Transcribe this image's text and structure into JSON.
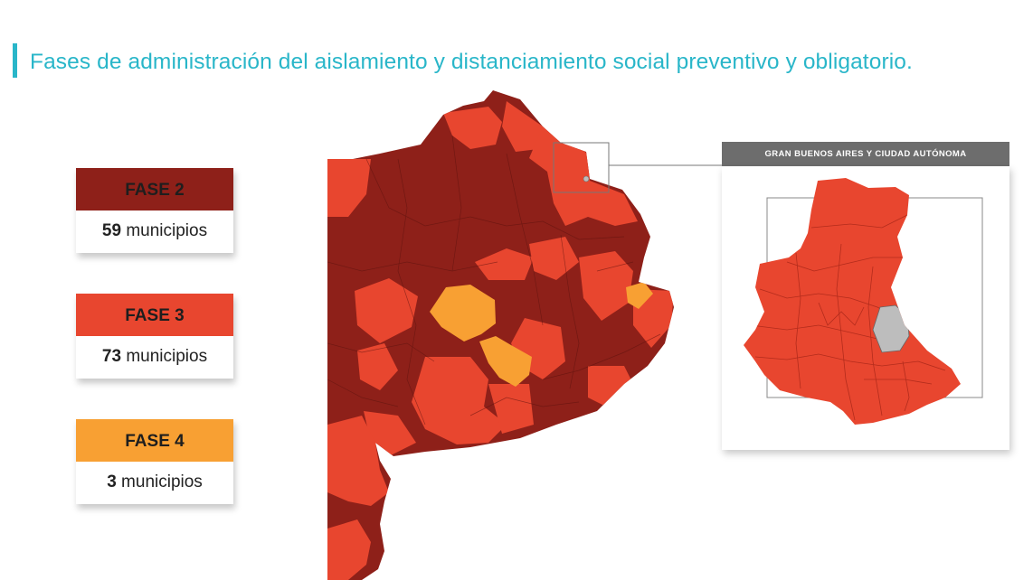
{
  "title": "Fases de administración del aislamiento y distanciamiento social preventivo y obligatorio.",
  "legend": [
    {
      "phase": "FASE 2",
      "count": "59",
      "unit": "municipios",
      "color": "#8e2019"
    },
    {
      "phase": "FASE 3",
      "count": "73",
      "unit": "municipios",
      "color": "#e8462f"
    },
    {
      "phase": "FASE 4",
      "count": "3",
      "unit": "municipios",
      "color": "#f8a033"
    }
  ],
  "inset": {
    "title": "GRAN BUENOS AIRES Y CIUDAD AUTÓNOMA"
  },
  "colors": {
    "title": "#29b6c9",
    "fase2": "#8e2019",
    "fase3": "#e8462f",
    "fase4": "#f8a033",
    "caba": "#bdbdbd",
    "inset_header": "#6d6d6d"
  }
}
